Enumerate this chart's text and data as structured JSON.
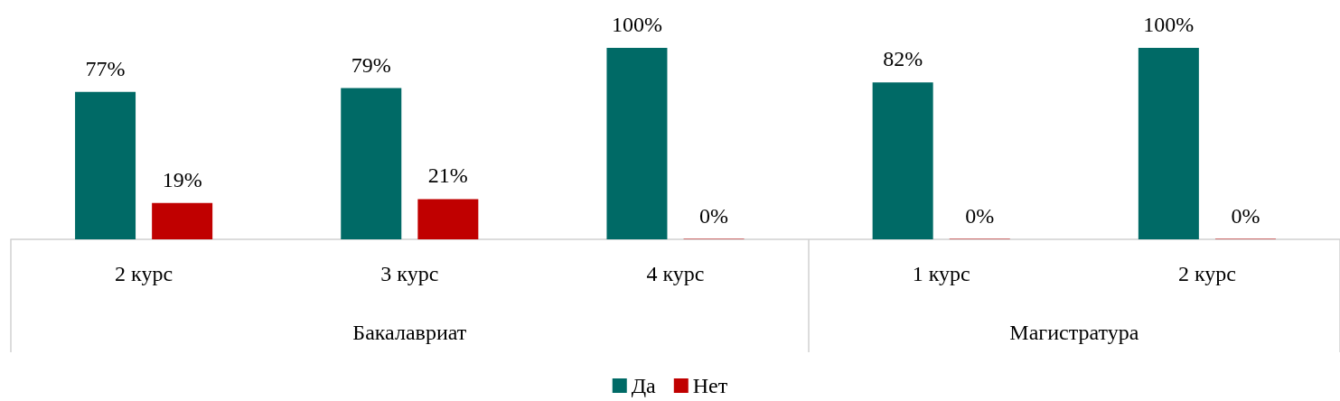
{
  "chart_data": {
    "type": "bar",
    "categories": [
      "2 курс",
      "3 курс",
      "4 курс",
      "1 курс",
      "2 курс"
    ],
    "series": [
      {
        "name": "Да",
        "color": "#006a66",
        "values": [
          77,
          79,
          100,
          82,
          100
        ],
        "value_labels": [
          "77%",
          "79%",
          "100%",
          "82%",
          "100%"
        ]
      },
      {
        "name": "Нет",
        "color": "#c00000",
        "values": [
          19,
          21,
          0,
          0,
          0
        ],
        "value_labels": [
          "19%",
          "21%",
          "0%",
          "0%",
          "0%"
        ]
      }
    ],
    "annotations": [
      "Бакалавриат",
      "Магистратура"
    ],
    "legend": "bottom"
  }
}
